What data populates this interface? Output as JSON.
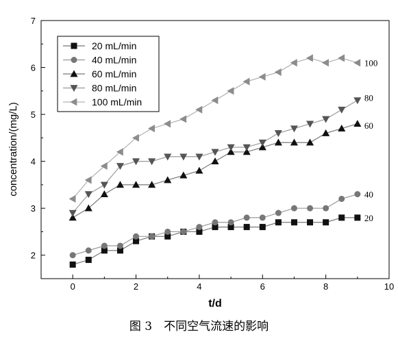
{
  "caption": "图 3　不同空气流速的影响",
  "chart_data": {
    "type": "line",
    "xlabel": "t/d",
    "ylabel": "concentration/(mg/L)",
    "xlim": [
      -1,
      10
    ],
    "ylim": [
      1.5,
      7
    ],
    "xticks": [
      0,
      2,
      4,
      6,
      8,
      10
    ],
    "yticks": [
      2,
      3,
      4,
      5,
      6,
      7
    ],
    "grid": false,
    "legend_position": "top-left",
    "x": [
      0,
      0.5,
      1,
      1.5,
      2,
      2.5,
      3,
      3.5,
      4,
      4.5,
      5,
      5.5,
      6,
      6.5,
      7,
      7.5,
      8,
      8.5,
      9
    ],
    "series": [
      {
        "name": "20 mL/min",
        "end_label": "20",
        "marker": "square",
        "color": "#111111",
        "line_color": "#777777",
        "values": [
          1.8,
          1.9,
          2.1,
          2.1,
          2.3,
          2.4,
          2.4,
          2.5,
          2.5,
          2.6,
          2.6,
          2.6,
          2.6,
          2.7,
          2.7,
          2.7,
          2.7,
          2.8,
          2.8
        ]
      },
      {
        "name": "40 mL/min",
        "end_label": "40",
        "marker": "circle",
        "color": "#777777",
        "line_color": "#999999",
        "values": [
          2.0,
          2.1,
          2.2,
          2.2,
          2.4,
          2.4,
          2.5,
          2.5,
          2.6,
          2.7,
          2.7,
          2.8,
          2.8,
          2.9,
          3.0,
          3.0,
          3.0,
          3.2,
          3.3
        ]
      },
      {
        "name": "60 mL/min",
        "end_label": "60",
        "marker": "triangle-up",
        "color": "#111111",
        "line_color": "#777777",
        "values": [
          2.8,
          3.0,
          3.3,
          3.5,
          3.5,
          3.5,
          3.6,
          3.7,
          3.8,
          4.0,
          4.2,
          4.2,
          4.3,
          4.4,
          4.4,
          4.4,
          4.6,
          4.7,
          4.8
        ]
      },
      {
        "name": "80 mL/min",
        "end_label": "80",
        "marker": "triangle-down",
        "color": "#555555",
        "line_color": "#999999",
        "values": [
          2.9,
          3.3,
          3.5,
          3.9,
          4.0,
          4.0,
          4.1,
          4.1,
          4.1,
          4.2,
          4.3,
          4.3,
          4.4,
          4.6,
          4.7,
          4.8,
          4.9,
          5.1,
          5.3
        ]
      },
      {
        "name": "100 mL/min",
        "end_label": "100",
        "marker": "triangle-left",
        "color": "#8c8c8c",
        "line_color": "#b0b0b0",
        "values": [
          3.2,
          3.6,
          3.9,
          4.2,
          4.5,
          4.7,
          4.8,
          4.9,
          5.1,
          5.3,
          5.5,
          5.7,
          5.8,
          5.9,
          6.1,
          6.2,
          6.1,
          6.2,
          6.1
        ]
      }
    ]
  }
}
